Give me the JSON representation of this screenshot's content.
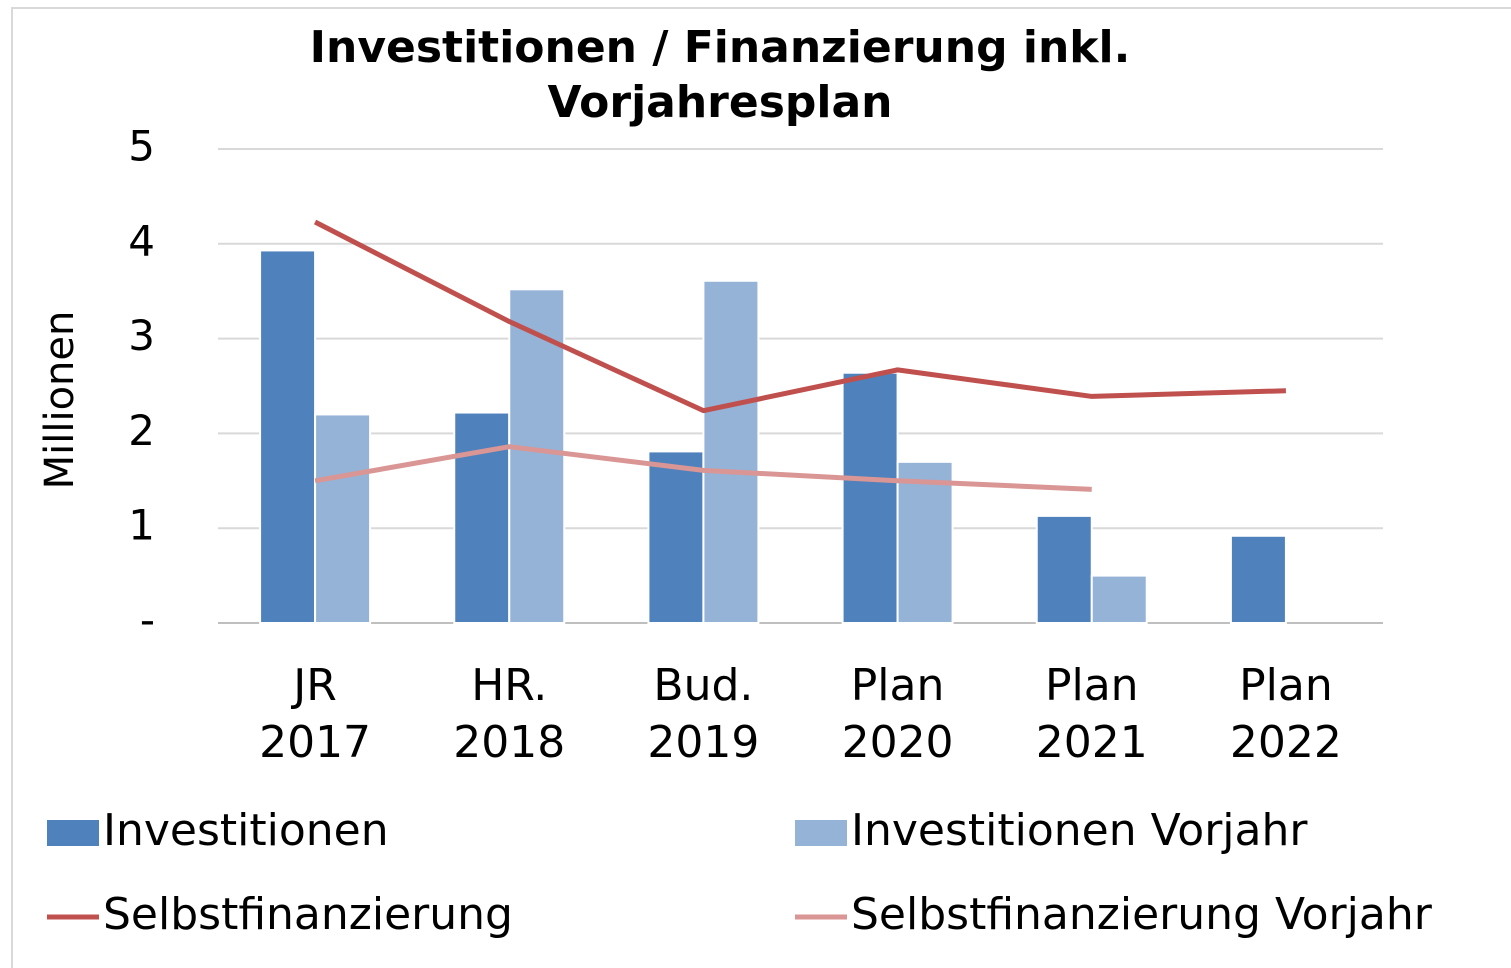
{
  "chart_data": {
    "type": "combo",
    "title": [
      "Investitionen / Finanzierung inkl.",
      "Vorjahresplan"
    ],
    "ylabel": "Millionen",
    "categories": [
      [
        "JR",
        "2017"
      ],
      [
        "HR.",
        "2018"
      ],
      [
        "Bud.",
        "2019"
      ],
      [
        "Plan",
        "2020"
      ],
      [
        "Plan",
        "2021"
      ],
      [
        "Plan",
        "2022"
      ]
    ],
    "series": [
      {
        "name": "Investitionen",
        "type": "bar",
        "color": "#4f81bd",
        "values": [
          3.93,
          2.22,
          1.81,
          2.64,
          1.13,
          0.92
        ]
      },
      {
        "name": "Investitionen Vorjahr",
        "type": "bar",
        "color": "#95b3d7",
        "values": [
          2.2,
          3.52,
          3.61,
          1.7,
          0.5,
          null
        ]
      },
      {
        "name": "Selbstfinanzierung",
        "type": "line",
        "color": "#c0504d",
        "values": [
          4.23,
          3.18,
          2.24,
          2.67,
          2.39,
          2.45
        ]
      },
      {
        "name": "Selbstfinanzierung Vorjahr",
        "type": "line",
        "color": "#d99694",
        "values": [
          1.5,
          1.86,
          1.61,
          1.5,
          1.41,
          null
        ]
      }
    ],
    "ylim": [
      0,
      5
    ],
    "yticks": [
      {
        "value": 0,
        "label": "-"
      },
      1,
      2,
      3,
      4,
      5
    ],
    "grid": true,
    "legend": "bottom"
  }
}
